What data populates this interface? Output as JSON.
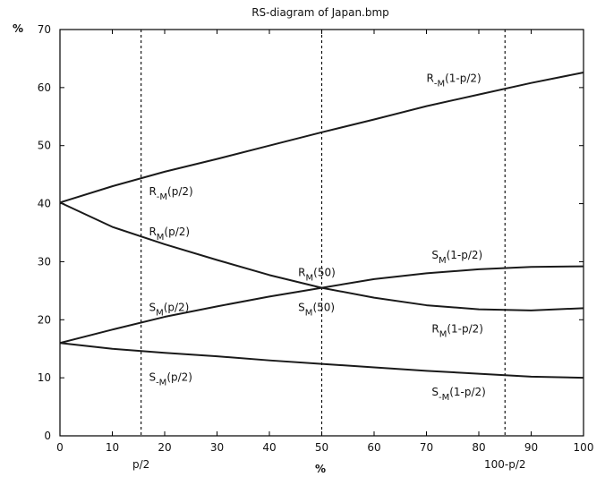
{
  "chart_data": {
    "type": "line",
    "title": "RS-diagram of Japan.bmp",
    "ylabel": "%",
    "xlabel": "%",
    "xlim": [
      0,
      100
    ],
    "ylim": [
      0,
      70
    ],
    "xticks": [
      0,
      10,
      20,
      30,
      40,
      50,
      60,
      70,
      80,
      90,
      100
    ],
    "yticks": [
      0,
      10,
      20,
      30,
      40,
      50,
      60,
      70
    ],
    "grid": false,
    "legend": "none",
    "x": [
      0,
      10,
      20,
      30,
      40,
      50,
      60,
      70,
      80,
      90,
      100
    ],
    "series": [
      {
        "key": "r_neg",
        "values": [
          40.2,
          43.0,
          45.5,
          47.7,
          50.0,
          52.3,
          54.5,
          56.8,
          58.8,
          60.8,
          62.6
        ]
      },
      {
        "key": "r_pos",
        "values": [
          40.2,
          36.0,
          33.0,
          30.3,
          27.7,
          25.5,
          23.8,
          22.5,
          21.8,
          21.6,
          22.0
        ]
      },
      {
        "key": "s_pos",
        "values": [
          16.0,
          18.3,
          20.5,
          22.3,
          24.0,
          25.5,
          27.0,
          28.0,
          28.7,
          29.1,
          29.2
        ]
      },
      {
        "key": "s_neg",
        "values": [
          16.0,
          15.0,
          14.3,
          13.7,
          13.0,
          12.4,
          11.8,
          11.2,
          10.7,
          10.2,
          10.0
        ]
      }
    ],
    "ref_lines": [
      {
        "x": 15.5,
        "label": "p/2"
      },
      {
        "x": 50,
        "label": ""
      },
      {
        "x": 85,
        "label": "100-p/2"
      }
    ],
    "annotations": [
      {
        "x": 70,
        "y": 61.0,
        "main": "R",
        "sub": "-M",
        "tail": "(1-p/2)"
      },
      {
        "x": 17,
        "y": 41.5,
        "main": "R",
        "sub": "-M",
        "tail": "(p/2)"
      },
      {
        "x": 17,
        "y": 34.5,
        "main": "R",
        "sub": "M",
        "tail": "(p/2)"
      },
      {
        "x": 45.5,
        "y": 27.5,
        "main": "R",
        "sub": "M",
        "tail": "(50)"
      },
      {
        "x": 45.5,
        "y": 21.5,
        "main": "S",
        "sub": "M",
        "tail": "(50)"
      },
      {
        "x": 17,
        "y": 21.5,
        "main": "S",
        "sub": "M",
        "tail": "(p/2)"
      },
      {
        "x": 71,
        "y": 30.5,
        "main": "S",
        "sub": "M",
        "tail": "(1-p/2)"
      },
      {
        "x": 71,
        "y": 17.8,
        "main": "R",
        "sub": "M",
        "tail": "(1-p/2)"
      },
      {
        "x": 17,
        "y": 9.5,
        "main": "S",
        "sub": "-M",
        "tail": "(p/2)"
      },
      {
        "x": 71,
        "y": 6.9,
        "main": "S",
        "sub": "-M",
        "tail": "(1-p/2)"
      }
    ]
  }
}
